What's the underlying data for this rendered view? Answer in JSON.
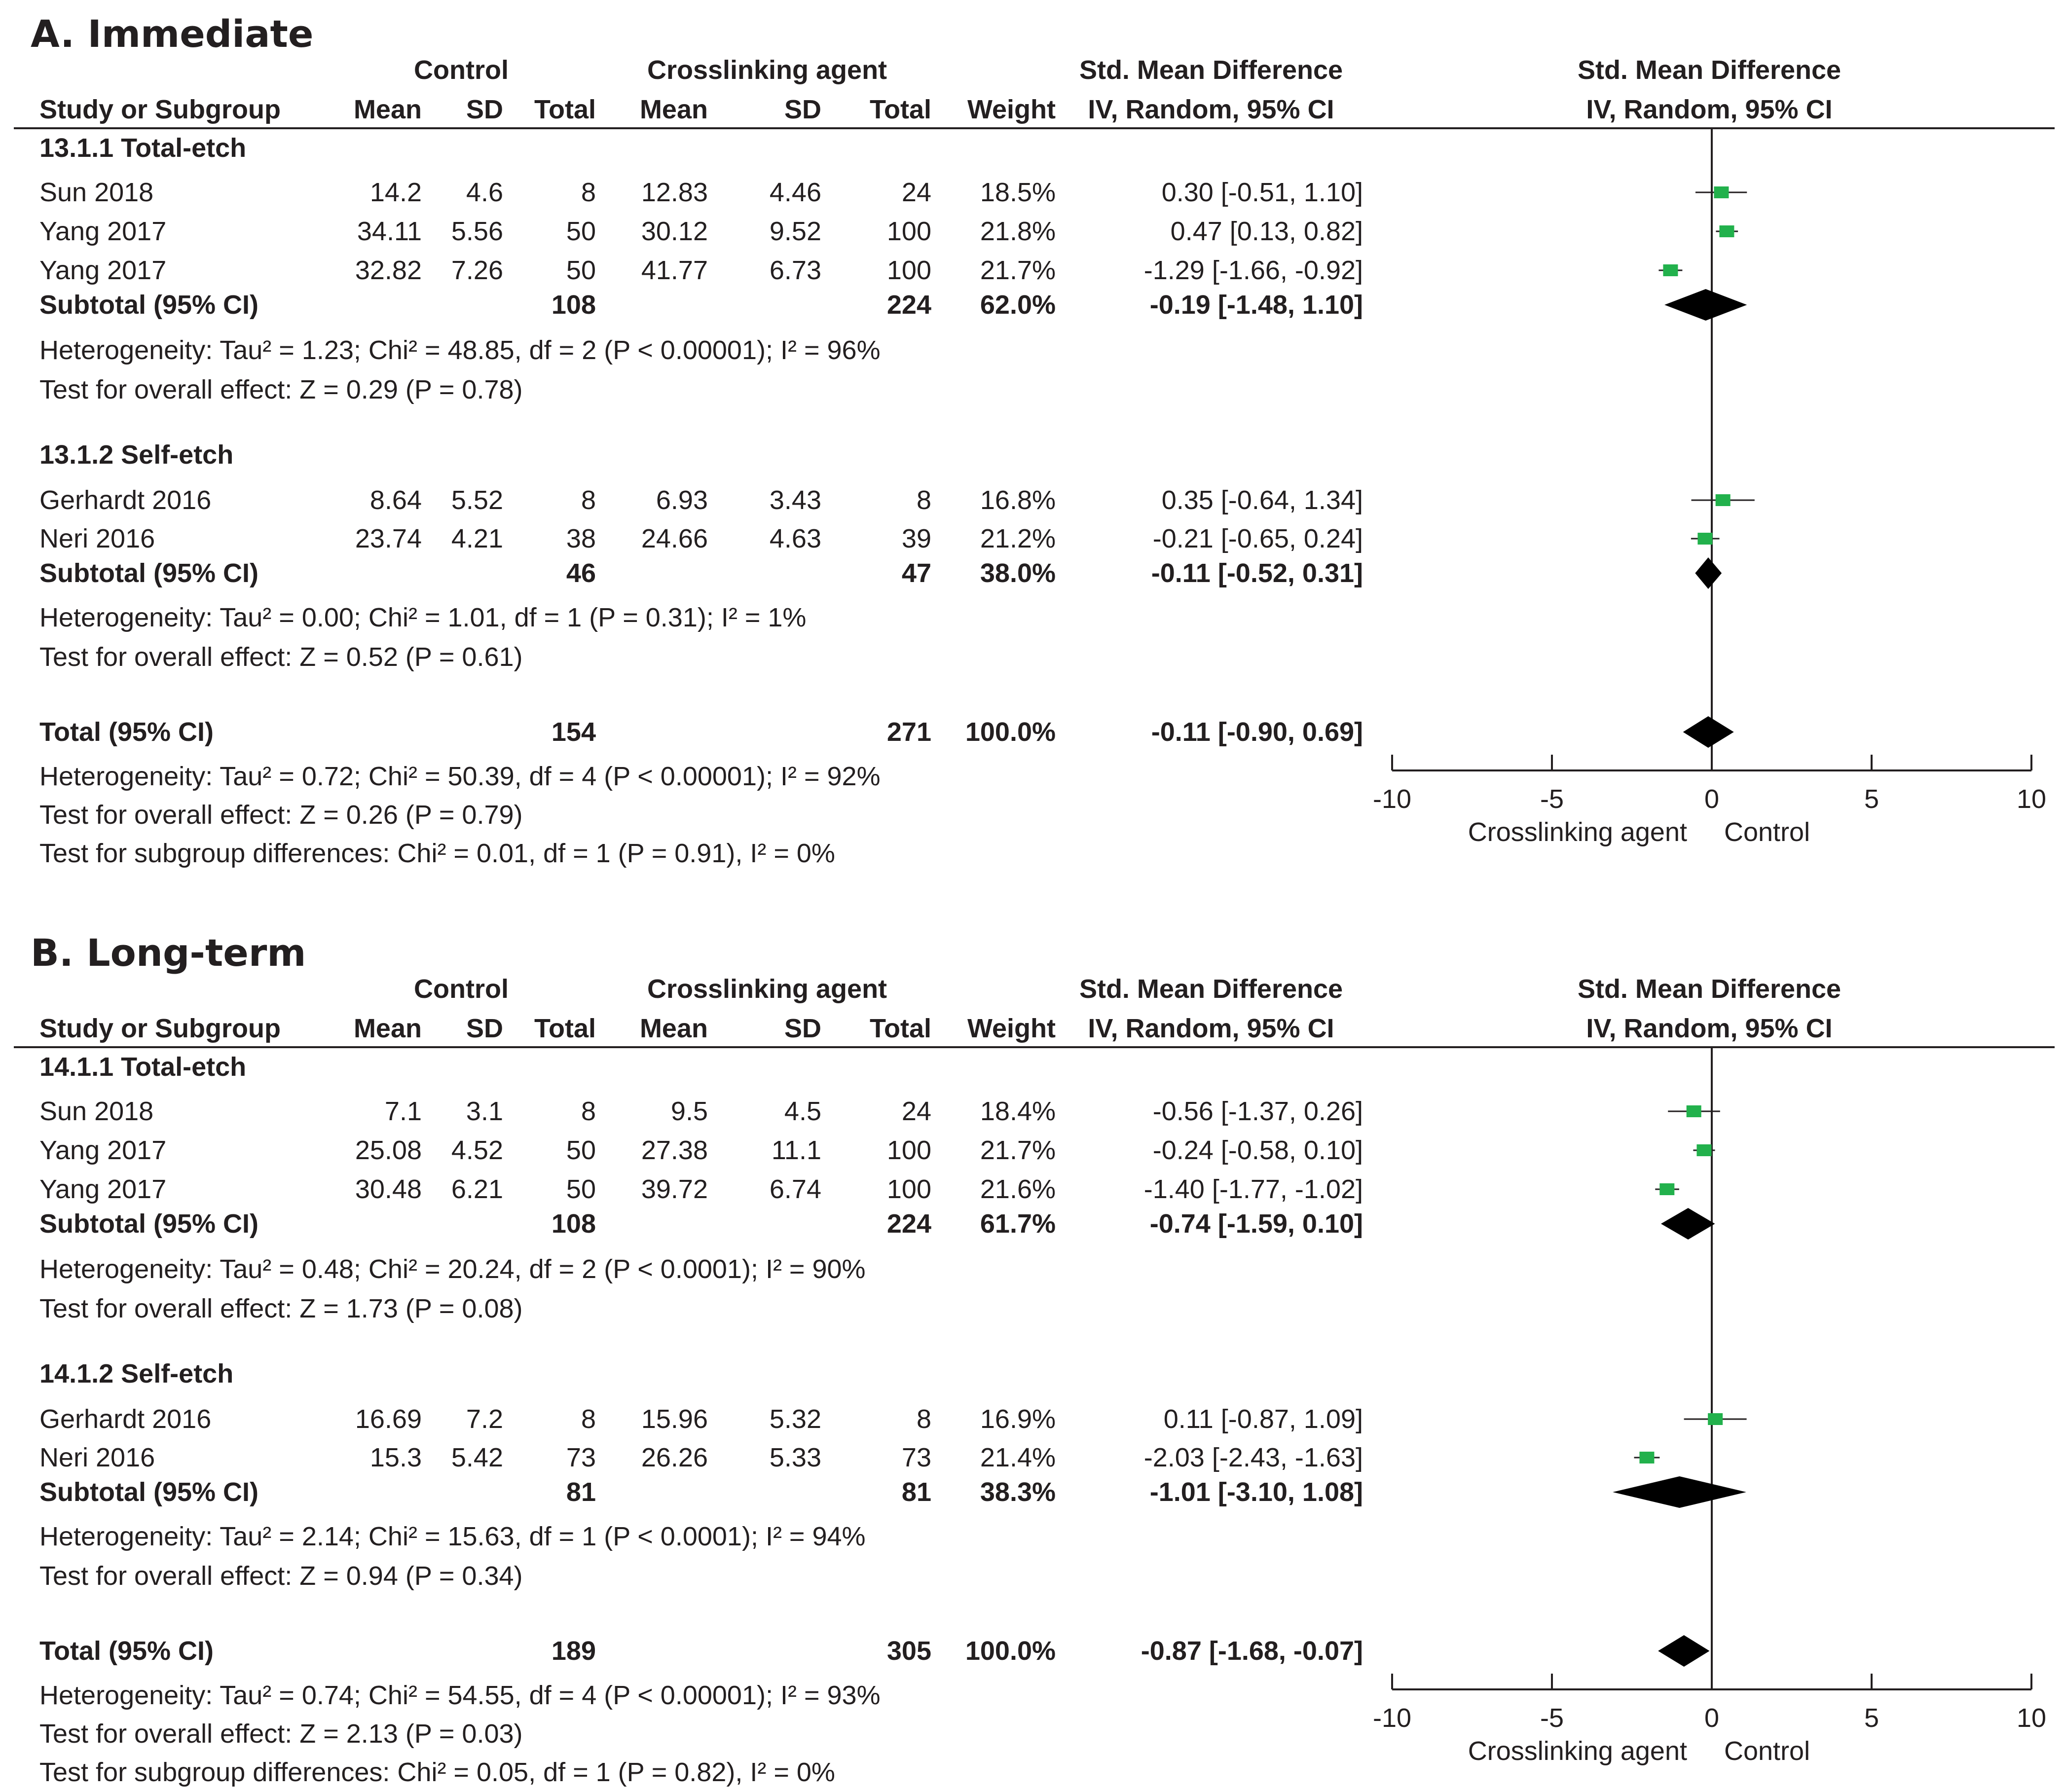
{
  "chart_data": [
    {
      "type": "forest",
      "panel_title": "A. Immediate",
      "headers": {
        "control": "Control",
        "crosslinking": "Crosslinking agent",
        "smd": "Std. Mean Difference",
        "plot": "Std. Mean Difference",
        "study": "Study or Subgroup",
        "mean_c": "Mean",
        "sd_c": "SD",
        "total_c": "Total",
        "mean_x": "Mean",
        "sd_x": "SD",
        "total_x": "Total",
        "weight": "Weight",
        "method": "IV, Random, 95% CI",
        "plot_method": "IV, Random, 95% CI"
      },
      "subgroups": [
        {
          "label": "13.1.1 Total-etch",
          "studies": [
            {
              "name": "Sun 2018",
              "mean_c": "14.2",
              "sd_c": "4.6",
              "n_c": "8",
              "mean_x": "12.83",
              "sd_x": "4.46",
              "n_x": "24",
              "weight": "18.5%",
              "ci_text": "0.30 [-0.51, 1.10]",
              "est": 0.3,
              "lo": -0.51,
              "hi": 1.1
            },
            {
              "name": "Yang 2017",
              "mean_c": "34.11",
              "sd_c": "5.56",
              "n_c": "50",
              "mean_x": "30.12",
              "sd_x": "9.52",
              "n_x": "100",
              "weight": "21.8%",
              "ci_text": "0.47 [0.13, 0.82]",
              "est": 0.47,
              "lo": 0.13,
              "hi": 0.82
            },
            {
              "name": "Yang 2017",
              "mean_c": "32.82",
              "sd_c": "7.26",
              "n_c": "50",
              "mean_x": "41.77",
              "sd_x": "6.73",
              "n_x": "100",
              "weight": "21.7%",
              "ci_text": "-1.29 [-1.66, -0.92]",
              "est": -1.29,
              "lo": -1.66,
              "hi": -0.92
            }
          ],
          "subtotal": {
            "label": "Subtotal (95% CI)",
            "n_c": "108",
            "n_x": "224",
            "weight": "62.0%",
            "ci_text": "-0.19 [-1.48, 1.10]",
            "est": -0.19,
            "lo": -1.48,
            "hi": 1.1
          },
          "heterogeneity": "Heterogeneity: Tau² = 1.23; Chi² = 48.85, df = 2 (P < 0.00001); I² = 96%",
          "overall": "Test for overall effect: Z = 0.29 (P = 0.78)"
        },
        {
          "label": "13.1.2 Self-etch",
          "studies": [
            {
              "name": "Gerhardt 2016",
              "mean_c": "8.64",
              "sd_c": "5.52",
              "n_c": "8",
              "mean_x": "6.93",
              "sd_x": "3.43",
              "n_x": "8",
              "weight": "16.8%",
              "ci_text": "0.35 [-0.64, 1.34]",
              "est": 0.35,
              "lo": -0.64,
              "hi": 1.34
            },
            {
              "name": "Neri 2016",
              "mean_c": "23.74",
              "sd_c": "4.21",
              "n_c": "38",
              "mean_x": "24.66",
              "sd_x": "4.63",
              "n_x": "39",
              "weight": "21.2%",
              "ci_text": "-0.21 [-0.65, 0.24]",
              "est": -0.21,
              "lo": -0.65,
              "hi": 0.24
            }
          ],
          "subtotal": {
            "label": "Subtotal (95% CI)",
            "n_c": "46",
            "n_x": "47",
            "weight": "38.0%",
            "ci_text": "-0.11 [-0.52, 0.31]",
            "est": -0.11,
            "lo": -0.52,
            "hi": 0.31
          },
          "heterogeneity": "Heterogeneity: Tau² = 0.00; Chi² = 1.01, df = 1 (P = 0.31); I² = 1%",
          "overall": "Test for overall effect: Z = 0.52 (P = 0.61)"
        }
      ],
      "total": {
        "label": "Total (95% CI)",
        "n_c": "154",
        "n_x": "271",
        "weight": "100.0%",
        "ci_text": "-0.11 [-0.90, 0.69]",
        "est": -0.11,
        "lo": -0.9,
        "hi": 0.69
      },
      "footer": [
        "Heterogeneity: Tau² = 0.72; Chi² = 50.39, df = 4 (P < 0.00001); I² = 92%",
        "Test for overall effect: Z = 0.26 (P = 0.79)",
        "Test for subgroup differences: Chi² = 0.01, df = 1 (P = 0.91), I² = 0%"
      ],
      "xlim": [
        -10,
        10
      ],
      "ticks": [
        -10,
        -5,
        0,
        5,
        10
      ],
      "tick_labels": [
        "-10",
        "-5",
        "0",
        "5",
        "10"
      ],
      "xlabel_left": "Crosslinking agent",
      "xlabel_right": "Control"
    },
    {
      "type": "forest",
      "panel_title": "B. Long-term",
      "headers": {
        "control": "Control",
        "crosslinking": "Crosslinking agent",
        "smd": "Std. Mean Difference",
        "plot": "Std. Mean Difference",
        "study": "Study or Subgroup",
        "mean_c": "Mean",
        "sd_c": "SD",
        "total_c": "Total",
        "mean_x": "Mean",
        "sd_x": "SD",
        "total_x": "Total",
        "weight": "Weight",
        "method": "IV, Random, 95% CI",
        "plot_method": "IV, Random, 95% CI"
      },
      "subgroups": [
        {
          "label": "14.1.1 Total-etch",
          "studies": [
            {
              "name": "Sun 2018",
              "mean_c": "7.1",
              "sd_c": "3.1",
              "n_c": "8",
              "mean_x": "9.5",
              "sd_x": "4.5",
              "n_x": "24",
              "weight": "18.4%",
              "ci_text": "-0.56 [-1.37, 0.26]",
              "est": -0.56,
              "lo": -1.37,
              "hi": 0.26
            },
            {
              "name": "Yang 2017",
              "mean_c": "25.08",
              "sd_c": "4.52",
              "n_c": "50",
              "mean_x": "27.38",
              "sd_x": "11.1",
              "n_x": "100",
              "weight": "21.7%",
              "ci_text": "-0.24 [-0.58, 0.10]",
              "est": -0.24,
              "lo": -0.58,
              "hi": 0.1
            },
            {
              "name": "Yang 2017",
              "mean_c": "30.48",
              "sd_c": "6.21",
              "n_c": "50",
              "mean_x": "39.72",
              "sd_x": "6.74",
              "n_x": "100",
              "weight": "21.6%",
              "ci_text": "-1.40 [-1.77, -1.02]",
              "est": -1.4,
              "lo": -1.77,
              "hi": -1.02
            }
          ],
          "subtotal": {
            "label": "Subtotal (95% CI)",
            "n_c": "108",
            "n_x": "224",
            "weight": "61.7%",
            "ci_text": "-0.74 [-1.59, 0.10]",
            "est": -0.74,
            "lo": -1.59,
            "hi": 0.1
          },
          "heterogeneity": "Heterogeneity: Tau² = 0.48; Chi² = 20.24, df = 2 (P < 0.0001); I² = 90%",
          "overall": "Test for overall effect: Z = 1.73 (P = 0.08)"
        },
        {
          "label": "14.1.2 Self-etch",
          "studies": [
            {
              "name": "Gerhardt 2016",
              "mean_c": "16.69",
              "sd_c": "7.2",
              "n_c": "8",
              "mean_x": "15.96",
              "sd_x": "5.32",
              "n_x": "8",
              "weight": "16.9%",
              "ci_text": "0.11 [-0.87, 1.09]",
              "est": 0.11,
              "lo": -0.87,
              "hi": 1.09
            },
            {
              "name": "Neri 2016",
              "mean_c": "15.3",
              "sd_c": "5.42",
              "n_c": "73",
              "mean_x": "26.26",
              "sd_x": "5.33",
              "n_x": "73",
              "weight": "21.4%",
              "ci_text": "-2.03 [-2.43, -1.63]",
              "est": -2.03,
              "lo": -2.43,
              "hi": -1.63
            }
          ],
          "subtotal": {
            "label": "Subtotal (95% CI)",
            "n_c": "81",
            "n_x": "81",
            "weight": "38.3%",
            "ci_text": "-1.01 [-3.10, 1.08]",
            "est": -1.01,
            "lo": -3.1,
            "hi": 1.08
          },
          "heterogeneity": "Heterogeneity: Tau² = 2.14; Chi² = 15.63, df = 1 (P < 0.0001); I² = 94%",
          "overall": "Test for overall effect: Z = 0.94 (P = 0.34)"
        }
      ],
      "total": {
        "label": "Total (95% CI)",
        "n_c": "189",
        "n_x": "305",
        "weight": "100.0%",
        "ci_text": "-0.87 [-1.68, -0.07]",
        "est": -0.87,
        "lo": -1.68,
        "hi": -0.07
      },
      "footer": [
        "Heterogeneity: Tau² = 0.74; Chi² = 54.55, df = 4 (P < 0.00001); I² = 93%",
        "Test for overall effect: Z = 2.13 (P = 0.03)",
        "Test for subgroup differences: Chi² = 0.05, df = 1 (P = 0.82), I² = 0%"
      ],
      "xlim": [
        -10,
        10
      ],
      "ticks": [
        -10,
        -5,
        0,
        5,
        10
      ],
      "tick_labels": [
        "-10",
        "-5",
        "0",
        "5",
        "10"
      ],
      "xlabel_left": "Crosslinking agent",
      "xlabel_right": "Control"
    }
  ],
  "colors": {
    "marker": "#22b14c",
    "diamond": "#000000",
    "text": "#231f20"
  }
}
